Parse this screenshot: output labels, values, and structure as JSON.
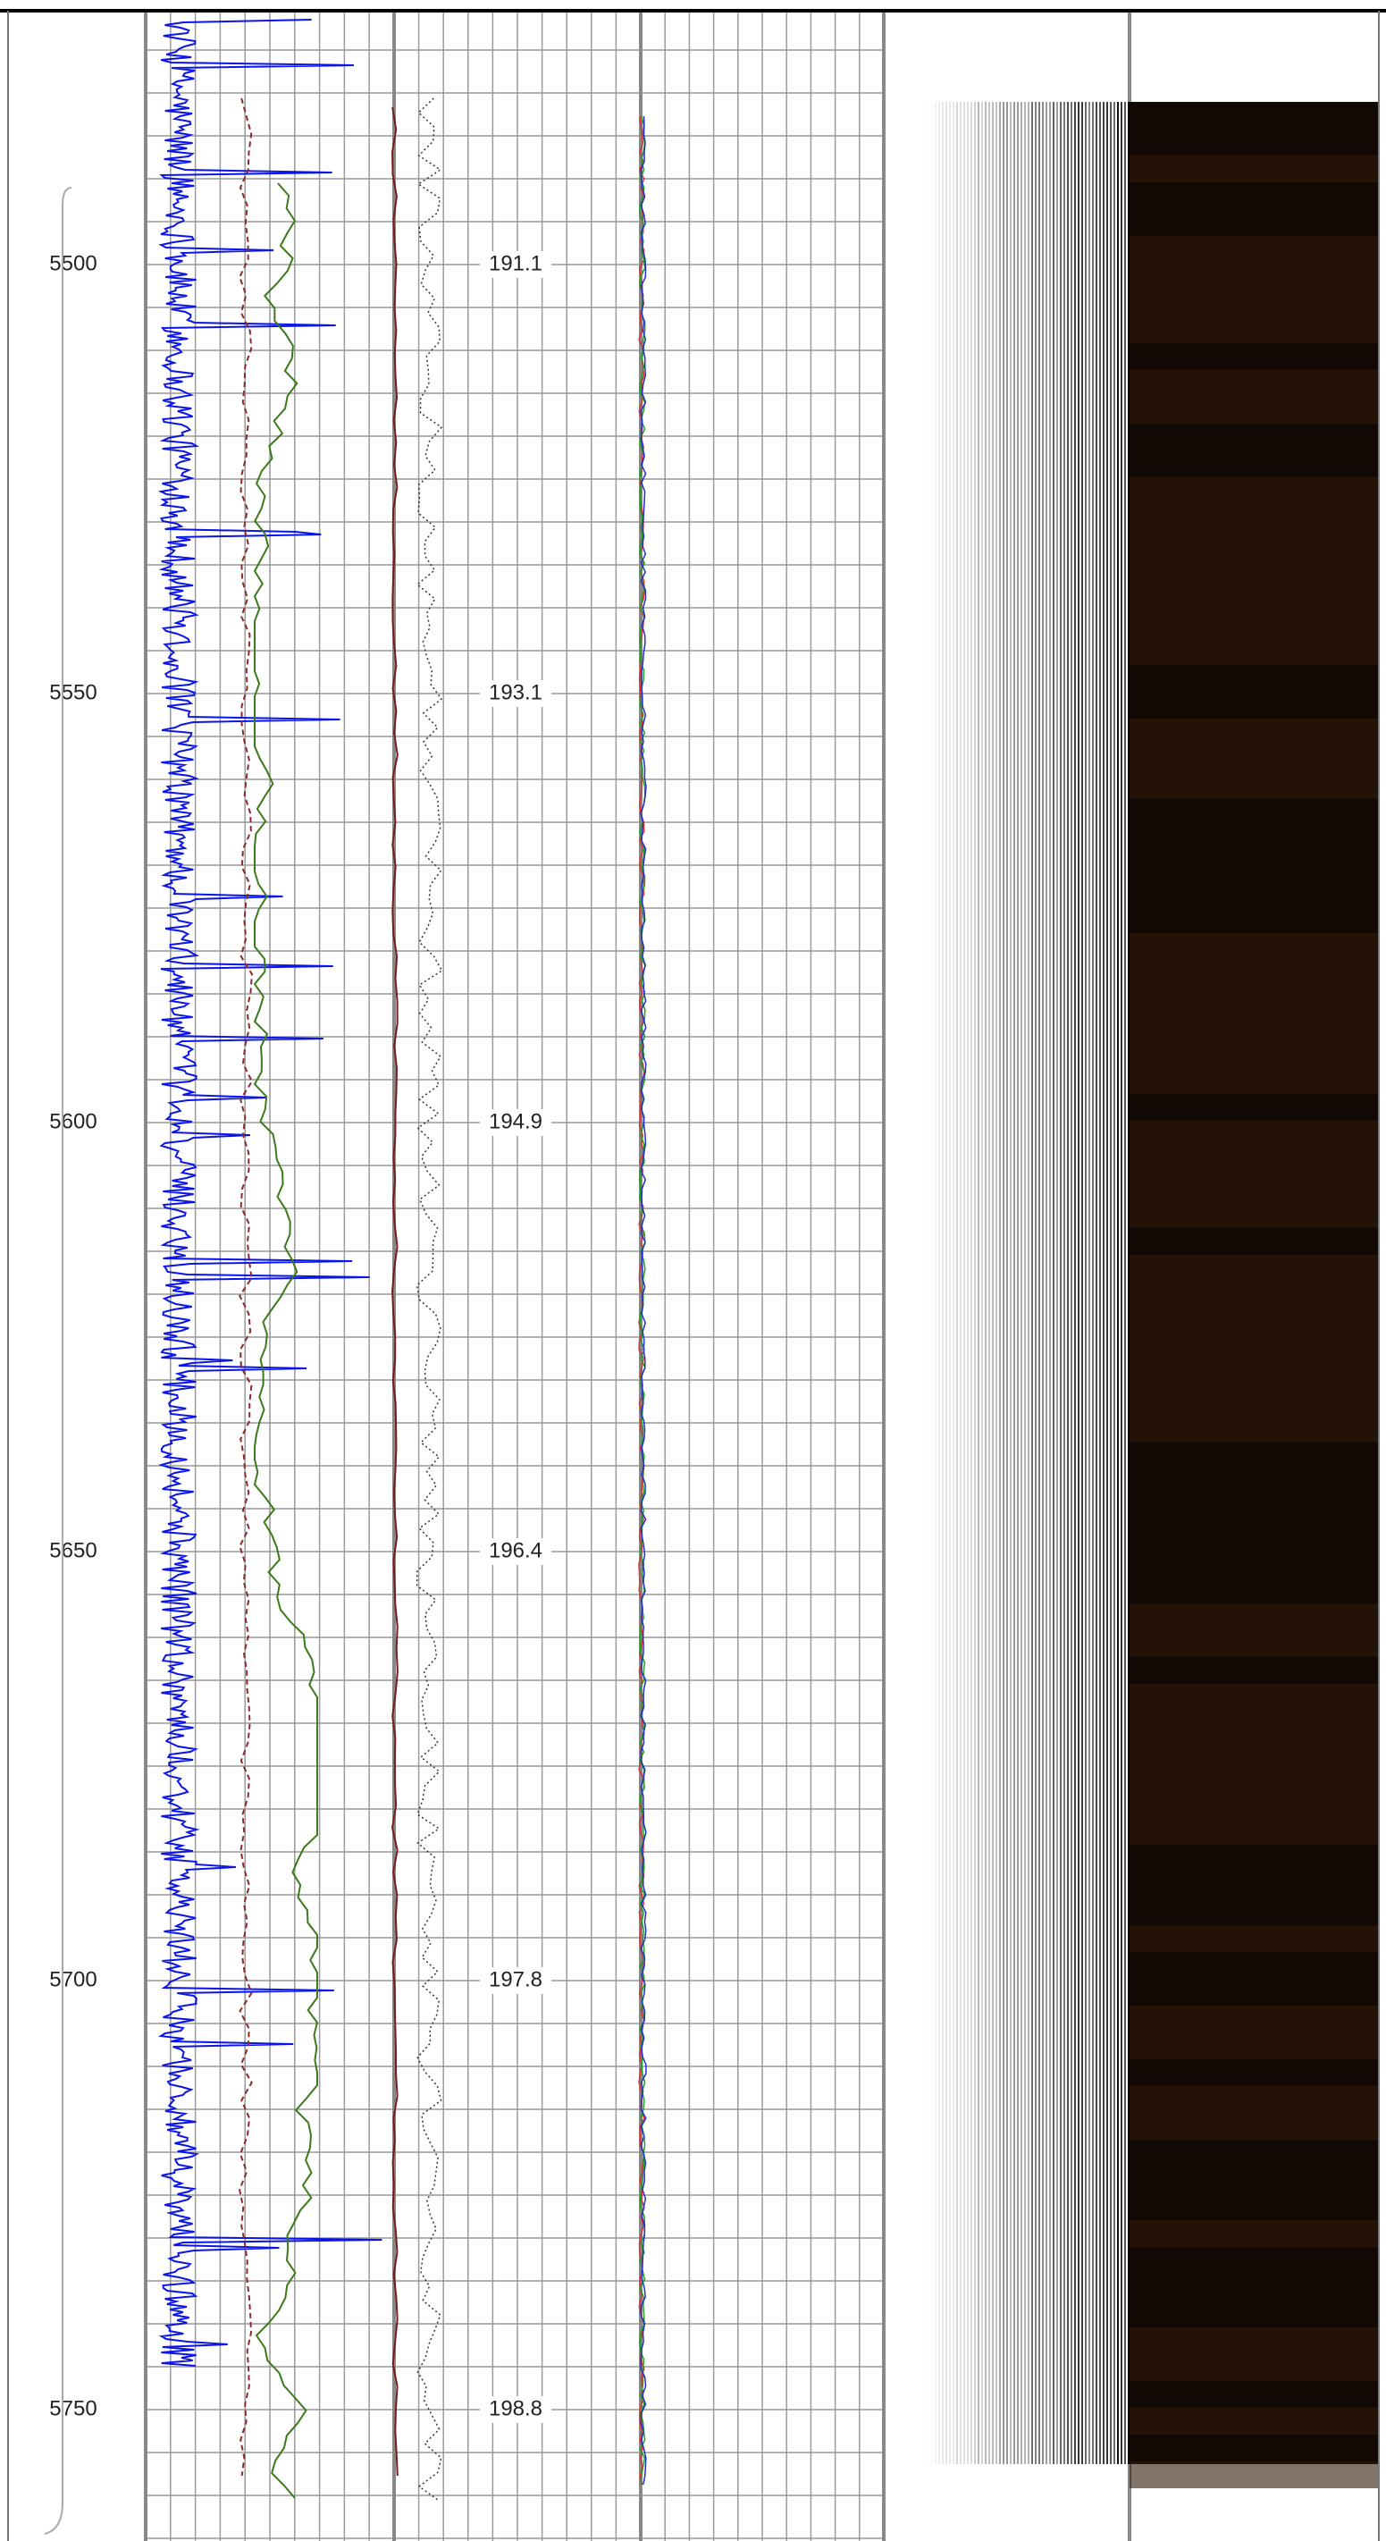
{
  "depth_track": {
    "labels": [
      "5500",
      "5550",
      "5600",
      "5650",
      "5700",
      "5750"
    ]
  },
  "log_track": {
    "annotations": [
      "191.1",
      "193.1",
      "194.9",
      "196.4",
      "197.8",
      "198.8"
    ]
  }
}
